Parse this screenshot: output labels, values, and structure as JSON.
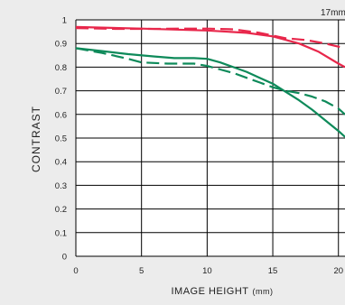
{
  "chart_data": {
    "type": "line",
    "corner_label": "17mm",
    "top_label": "",
    "xlabel": "IMAGE HEIGHT",
    "xlabel_unit": "(mm)",
    "ylabel": "CONTRAST",
    "xlim": [
      0,
      20.5
    ],
    "ylim": [
      0,
      1
    ],
    "xticks": [
      0,
      5,
      10,
      15,
      20
    ],
    "xtick_labels": [
      "0",
      "5",
      "10",
      "15",
      "20"
    ],
    "yticks": [
      0,
      0.1,
      0.2,
      0.3,
      0.4,
      0.5,
      0.6,
      0.7,
      0.8,
      0.9,
      1
    ],
    "ytick_labels": [
      "0",
      "0.1",
      "0.2",
      "0.3",
      "0.4",
      "0.5",
      "0.6",
      "0.7",
      "0.8",
      "0.9",
      "1"
    ],
    "grid": true,
    "series": [
      {
        "color": "#e8274b",
        "dash": false,
        "x": [
          0,
          5,
          10,
          13,
          15,
          17,
          18.5,
          20,
          20.5
        ],
        "y": [
          0.97,
          0.963,
          0.955,
          0.945,
          0.93,
          0.9,
          0.865,
          0.815,
          0.8
        ]
      },
      {
        "color": "#e8274b",
        "dash": true,
        "x": [
          0,
          3,
          6,
          8,
          10,
          12,
          14,
          16,
          17.5,
          19,
          20.5
        ],
        "y": [
          0.965,
          0.962,
          0.962,
          0.963,
          0.963,
          0.96,
          0.945,
          0.922,
          0.915,
          0.9,
          0.88
        ]
      },
      {
        "color": "#0e8a5a",
        "dash": false,
        "x": [
          0,
          2,
          4,
          6,
          7.5,
          9,
          10,
          11,
          12,
          13,
          14,
          15,
          16,
          17,
          18,
          19,
          20,
          20.5
        ],
        "y": [
          0.88,
          0.868,
          0.855,
          0.845,
          0.838,
          0.838,
          0.835,
          0.82,
          0.8,
          0.78,
          0.755,
          0.73,
          0.695,
          0.66,
          0.62,
          0.575,
          0.53,
          0.505
        ]
      },
      {
        "color": "#0e8a5a",
        "dash": true,
        "x": [
          0,
          2,
          4,
          5,
          7,
          9,
          10,
          11,
          12,
          13,
          14,
          15,
          16,
          17,
          18,
          19,
          20,
          20.5
        ],
        "y": [
          0.88,
          0.86,
          0.835,
          0.82,
          0.815,
          0.815,
          0.805,
          0.79,
          0.775,
          0.755,
          0.735,
          0.715,
          0.7,
          0.69,
          0.675,
          0.655,
          0.625,
          0.6
        ]
      }
    ]
  }
}
